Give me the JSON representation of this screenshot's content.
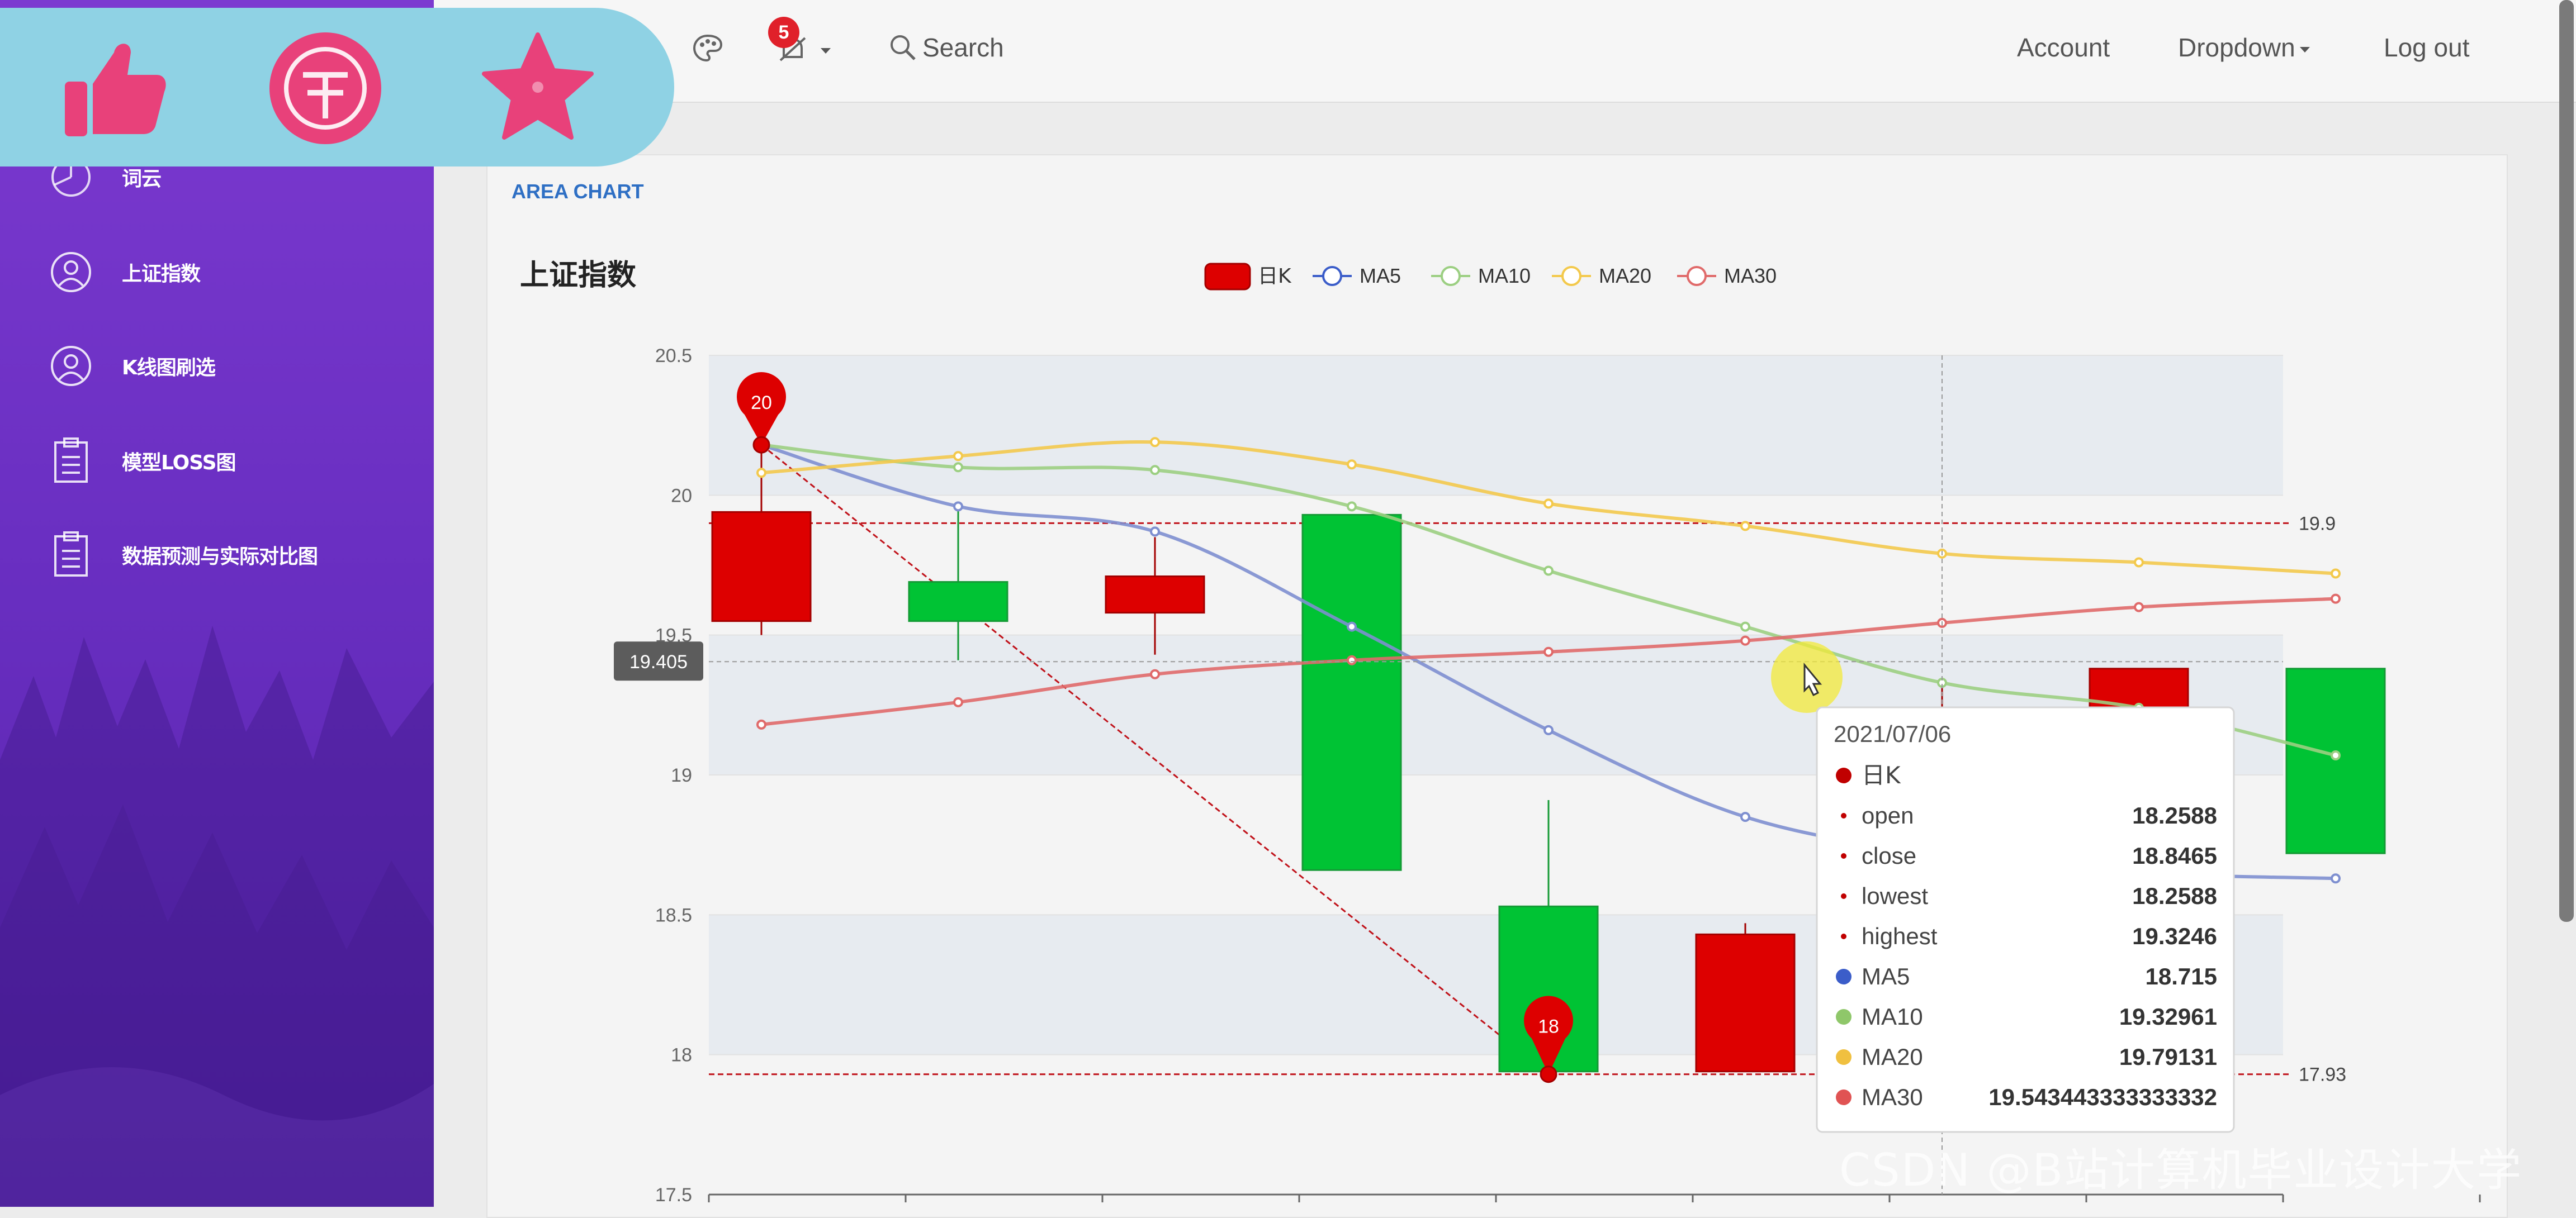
{
  "sidebar": {
    "items": [
      {
        "label": "词云",
        "icon": "pie-chart-icon"
      },
      {
        "label": "上证指数",
        "icon": "user-circle-icon"
      },
      {
        "label": "K线图刷选",
        "icon": "user-circle-icon"
      },
      {
        "label": "模型LOSS图",
        "icon": "clipboard-icon"
      },
      {
        "label": "数据预测与实际对比图",
        "icon": "clipboard-icon"
      }
    ]
  },
  "header": {
    "notification_count": "5",
    "search_label": "Search",
    "account_label": "Account",
    "dropdown_label": "Dropdown",
    "logout_label": "Log out"
  },
  "action_bar": {
    "buttons": [
      {
        "icon": "thumbs-up-icon"
      },
      {
        "icon": "coin-icon"
      },
      {
        "icon": "star-icon"
      }
    ],
    "accent": "#e8417a",
    "background": "#8fd2e4"
  },
  "panel": {
    "label": "AREA CHART"
  },
  "chart_data": {
    "type": "candlestick",
    "title": "上证指数",
    "legend": [
      "日K",
      "MA5",
      "MA10",
      "MA20",
      "MA30"
    ],
    "legend_position": "top-center",
    "colors": {
      "up": "#dd0000",
      "down": "#00c334",
      "MA5": "#7e8fd0",
      "MA10": "#9ccf82",
      "MA20": "#f3c94c",
      "MA30": "#e06a6a"
    },
    "ylim": [
      17.5,
      20.5
    ],
    "y_ticks": [
      "20.5",
      "20",
      "19.5",
      "19",
      "18.5",
      "18",
      "17.5"
    ],
    "candles": [
      {
        "open": 19.55,
        "close": 19.94,
        "lowest": 19.5,
        "highest": 20.18,
        "color": "red"
      },
      {
        "open": 19.55,
        "close": 19.69,
        "lowest": 19.41,
        "highest": 19.95,
        "color": "green"
      },
      {
        "open": 19.58,
        "close": 19.71,
        "lowest": 19.43,
        "highest": 19.85,
        "color": "red"
      },
      {
        "open": 18.66,
        "close": 19.93,
        "lowest": 18.66,
        "highest": 19.93,
        "color": "green"
      },
      {
        "open": 17.94,
        "close": 18.53,
        "lowest": 17.93,
        "highest": 18.91,
        "color": "green"
      },
      {
        "open": 17.94,
        "close": 18.43,
        "lowest": 17.94,
        "highest": 18.47,
        "color": "red"
      },
      {
        "open": 18.2588,
        "close": 18.8465,
        "lowest": 18.2588,
        "highest": 19.3246,
        "color": "red"
      },
      {
        "open": 18.9,
        "close": 19.38,
        "lowest": 18.8,
        "highest": 19.38,
        "color": "red"
      },
      {
        "open": 18.72,
        "close": 19.38,
        "lowest": 18.72,
        "highest": 19.38,
        "color": "green"
      }
    ],
    "ma": {
      "MA5": [
        20.18,
        19.96,
        19.87,
        19.53,
        19.16,
        18.85,
        18.715,
        18.65,
        18.63
      ],
      "MA10": [
        20.18,
        20.1,
        20.09,
        19.96,
        19.73,
        19.53,
        19.32961,
        19.24,
        19.07
      ],
      "MA20": [
        20.08,
        20.14,
        20.19,
        20.11,
        19.97,
        19.89,
        19.79131,
        19.76,
        19.72
      ],
      "MA30": [
        19.18,
        19.26,
        19.36,
        19.41,
        19.44,
        19.48,
        19.543443333333332,
        19.6,
        19.63
      ]
    },
    "mark_points": [
      {
        "label": "20",
        "candle": 0,
        "value": 20.18
      },
      {
        "label": "18",
        "candle": 4,
        "value": 17.93
      }
    ],
    "mark_lines": [
      {
        "label": "19.9",
        "value": 19.9
      },
      {
        "label": "17.93",
        "value": 17.93
      }
    ],
    "crosshair_value": "19.405",
    "tooltip": {
      "date": "2021/07/06",
      "series_label": "日K",
      "rows": [
        {
          "label": "open",
          "value": "18.2588"
        },
        {
          "label": "close",
          "value": "18.8465"
        },
        {
          "label": "lowest",
          "value": "18.2588"
        },
        {
          "label": "highest",
          "value": "19.3246"
        }
      ],
      "ma_rows": [
        {
          "label": "MA5",
          "value": "18.715",
          "color": "#3b5dc9"
        },
        {
          "label": "MA10",
          "value": "19.32961",
          "color": "#8fc76a"
        },
        {
          "label": "MA20",
          "value": "19.79131",
          "color": "#f0c040"
        },
        {
          "label": "MA30",
          "value": "19.543443333333332",
          "color": "#e05353"
        }
      ]
    }
  },
  "watermark": "CSDN @B站计算机毕业设计大学"
}
